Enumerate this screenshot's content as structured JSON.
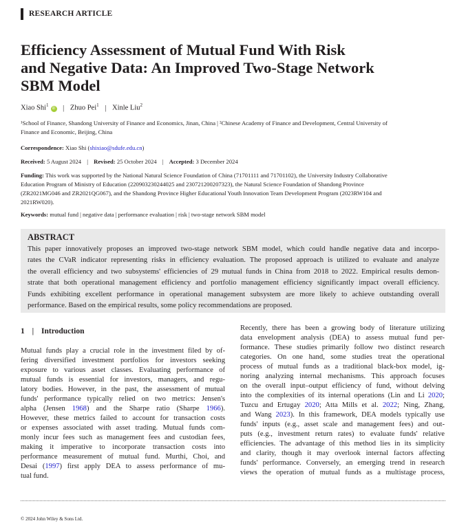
{
  "article_type": "RESEARCH ARTICLE",
  "title_lines": [
    "Efficiency Assessment of Mutual Fund With Risk",
    "and Negative Data: An Improved Two-Stage Network",
    "SBM Model"
  ],
  "authors": [
    {
      "name": "Xiao Shi",
      "aff": "1",
      "orcid": "iD"
    },
    {
      "name": "Zhuo Pei",
      "aff": "1"
    },
    {
      "name": "Xinle Liu",
      "aff": "2"
    }
  ],
  "affiliations_lines": [
    "¹School of Finance, Shandong University of Finance and Economics, Jinan, China  |  ²Chinese Academy of Finance and Development, Central University of",
    "Finance and Economic, Beijing, China"
  ],
  "correspondence": {
    "label": "Correspondence:",
    "name": "Xiao Shi",
    "email": "shixiao@sdufe.edu.cn"
  },
  "dates": {
    "received_label": "Received:",
    "received": "5 August 2024",
    "revised_label": "Revised:",
    "revised": "25 October 2024",
    "accepted_label": "Accepted:",
    "accepted": "3 December 2024"
  },
  "funding": {
    "label": "Funding:",
    "lines": [
      "This work was supported by the National Natural Science Foundation of China (71701111 and 71701102), the University Industry Collaborative",
      "Education Program of Ministry of Education (220903230244025 and 230721200207323), the Natural Science Foundation of Shandong Province",
      "(ZR2021MG046 and ZR2021QG067), and the Shandong Province Higher Educational Youth Innovation Team Development Program (2023RW104 and",
      "2021RW020)."
    ]
  },
  "keywords": {
    "label": "Keywords:",
    "text": "mutual fund | negative data | performance evaluation | risk | two-stage network SBM model"
  },
  "abstract": {
    "heading": "ABSTRACT",
    "lines": [
      "This paper innovatively proposes an improved two-stage network SBM model, which could handle negative data and incorpo-",
      "rates the CVaR indicator representing risks in efficiency evaluation. The proposed approach is utilized to evaluate and analyze",
      "the overall efficiency and two subsystems' efficiencies of 29 mutual funds in China from 2018 to 2022. Empirical results demon-",
      "strate that both operational management efficiency and portfolio management efficiency significantly impact overall efficiency.",
      "Funds exhibiting excellent performance in operational management subsystem are more likely to achieve outstanding overall",
      "performance. Based on the empirical results, some policy recommendations are proposed."
    ]
  },
  "section": {
    "number": "1",
    "title": "Introduction"
  },
  "left_column_lines": [
    [
      "Mutual funds play a crucial role in the investment filed by of-"
    ],
    [
      "fering diversified investment portfolios for investors seeking"
    ],
    [
      "exposure to various asset classes. Evaluating performance of"
    ],
    [
      "mutual funds is essential for investors, managers, and regu-"
    ],
    [
      "latory bodies. However, in the past, the assessment of mutual"
    ],
    [
      "funds' performance typically relied on two metrics: Jensen's"
    ],
    [
      "alpha (Jensen ",
      {
        "link": "1968"
      },
      ") and the Sharpe ratio (Sharpe ",
      {
        "link": "1966"
      },
      ")."
    ],
    [
      "However, these metrics failed to account for transaction costs"
    ],
    [
      "or expenses associated with asset trading. Mutual funds com-"
    ],
    [
      "monly incur fees such as management fees and custodian fees,"
    ],
    [
      "making it imperative to incorporate transaction costs into"
    ],
    [
      "performance measurement of mutual fund. Murthi, Choi, and"
    ],
    [
      "Desai (",
      {
        "link": "1997"
      },
      ") first apply DEA to assess performance of mu-"
    ],
    [
      "tual fund."
    ]
  ],
  "right_column_lines": [
    [
      "Recently, there has been a growing body of literature utilizing"
    ],
    [
      "data envelopment analysis (DEA) to assess mutual fund per-"
    ],
    [
      "formance. These studies primarily follow two distinct research"
    ],
    [
      "categories. On one hand, some studies treat the operational"
    ],
    [
      "process of mutual funds as a traditional black-box model, ig-"
    ],
    [
      "noring analyzing internal mechanisms. This approach focuses"
    ],
    [
      "on the overall input–output efficiency of fund, without delving"
    ],
    [
      "into the complexities of its internal operations (Lin and Li ",
      {
        "link": "2020"
      },
      ";"
    ],
    [
      "Tuzcu and Ertugay ",
      {
        "link": "2020"
      },
      "; Atta Mills et al. ",
      {
        "link": "2022"
      },
      "; Ning, Zhang,"
    ],
    [
      "and Wang ",
      {
        "link": "2023"
      },
      "). In this framework, DEA models typically use"
    ],
    [
      "funds' inputs (e.g., asset scale and management fees) and out-"
    ],
    [
      "puts (e.g., investment return rates) to evaluate funds' relative"
    ],
    [
      "efficiencies. The advantage of this method lies in its simplicity"
    ],
    [
      "and clarity, though it may overlook internal factors affecting"
    ],
    [
      "funds' performance. Conversely, an emerging trend in research"
    ],
    [
      "views the operation of mutual funds as a multistage process,"
    ]
  ],
  "footer": "© 2024 John Wiley & Sons Ltd.",
  "colors": {
    "link": "#2222cc",
    "abstract_bg": "#e9e9e9",
    "orcid": "#a6ce39"
  }
}
